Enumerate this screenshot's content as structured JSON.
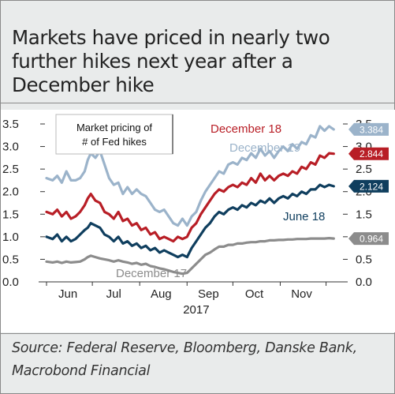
{
  "title": "Markets have priced in nearly two further hikes next year after a December hike",
  "source": "Source: Federal Reserve, Bloomberg, Danske Bank, Macrobond Financial",
  "colors": {
    "dec18": "#b81e26",
    "dec19": "#9bb3ca",
    "jun18": "#0f3e5e",
    "dec17": "#8c8c8c"
  },
  "chart_data": {
    "type": "line",
    "title": "",
    "xlabel": "2017",
    "ylabel": "",
    "ylim": [
      0,
      3.5
    ],
    "yticks": [
      "3.5",
      "3.0",
      "2.5",
      "2.0",
      "1.5",
      "1.0",
      "0.5",
      "0.0"
    ],
    "yticks_right": [
      "3.5",
      "3.0",
      "2.5",
      "2.0",
      "1.5",
      "1.0",
      "0.5",
      "0.0"
    ],
    "ytick_values": [
      3.5,
      3.0,
      2.5,
      2.0,
      1.5,
      1.0,
      0.5,
      0.0
    ],
    "x_tick_labels": [
      "Jun",
      "Jul",
      "Aug",
      "Sep",
      "Oct",
      "Nov"
    ],
    "x_tick_dates": [
      "2017-06-15",
      "2017-07-15",
      "2017-08-15",
      "2017-09-15",
      "2017-10-15",
      "2017-11-15"
    ],
    "x_range": [
      "2017-06-01",
      "2017-12-10"
    ],
    "legend_box": "Market pricing of\n# of Fed hikes",
    "legend_box_lines": [
      "Market pricing of",
      "# of Fed hikes"
    ],
    "grid": false,
    "series": [
      {
        "name": "December 19",
        "key": "dec19",
        "end_label": "3.384",
        "points": [
          [
            "2017-06-01",
            2.3
          ],
          [
            "2017-06-05",
            2.25
          ],
          [
            "2017-06-08",
            2.35
          ],
          [
            "2017-06-11",
            2.2
          ],
          [
            "2017-06-14",
            2.45
          ],
          [
            "2017-06-17",
            2.25
          ],
          [
            "2017-06-20",
            2.25
          ],
          [
            "2017-06-23",
            2.3
          ],
          [
            "2017-06-26",
            2.45
          ],
          [
            "2017-06-28",
            2.7
          ],
          [
            "2017-06-30",
            2.85
          ],
          [
            "2017-07-03",
            2.75
          ],
          [
            "2017-07-06",
            2.9
          ],
          [
            "2017-07-09",
            2.6
          ],
          [
            "2017-07-12",
            2.3
          ],
          [
            "2017-07-15",
            2.15
          ],
          [
            "2017-07-18",
            2.2
          ],
          [
            "2017-07-21",
            1.95
          ],
          [
            "2017-07-24",
            2.1
          ],
          [
            "2017-07-27",
            1.95
          ],
          [
            "2017-07-30",
            2.05
          ],
          [
            "2017-08-02",
            1.95
          ],
          [
            "2017-08-05",
            1.9
          ],
          [
            "2017-08-08",
            1.75
          ],
          [
            "2017-08-11",
            1.6
          ],
          [
            "2017-08-14",
            1.55
          ],
          [
            "2017-08-17",
            1.6
          ],
          [
            "2017-08-20",
            1.45
          ],
          [
            "2017-08-23",
            1.3
          ],
          [
            "2017-08-26",
            1.25
          ],
          [
            "2017-08-29",
            1.4
          ],
          [
            "2017-09-01",
            1.25
          ],
          [
            "2017-09-04",
            1.45
          ],
          [
            "2017-09-07",
            1.55
          ],
          [
            "2017-09-10",
            1.8
          ],
          [
            "2017-09-13",
            2.0
          ],
          [
            "2017-09-16",
            2.15
          ],
          [
            "2017-09-19",
            2.3
          ],
          [
            "2017-09-22",
            2.45
          ],
          [
            "2017-09-25",
            2.4
          ],
          [
            "2017-09-28",
            2.6
          ],
          [
            "2017-10-01",
            2.65
          ],
          [
            "2017-10-04",
            2.6
          ],
          [
            "2017-10-07",
            2.75
          ],
          [
            "2017-10-10",
            2.7
          ],
          [
            "2017-10-13",
            2.85
          ],
          [
            "2017-10-16",
            2.75
          ],
          [
            "2017-10-19",
            2.95
          ],
          [
            "2017-10-22",
            2.8
          ],
          [
            "2017-10-25",
            2.9
          ],
          [
            "2017-10-28",
            2.75
          ],
          [
            "2017-10-31",
            2.9
          ],
          [
            "2017-11-03",
            3.0
          ],
          [
            "2017-11-06",
            2.9
          ],
          [
            "2017-11-09",
            3.05
          ],
          [
            "2017-11-12",
            2.95
          ],
          [
            "2017-11-15",
            3.1
          ],
          [
            "2017-11-18",
            3.05
          ],
          [
            "2017-11-21",
            3.25
          ],
          [
            "2017-11-24",
            3.2
          ],
          [
            "2017-11-27",
            3.45
          ],
          [
            "2017-11-30",
            3.35
          ],
          [
            "2017-12-03",
            3.45
          ],
          [
            "2017-12-06",
            3.38
          ]
        ]
      },
      {
        "name": "December 18",
        "key": "dec18",
        "end_label": "2.844",
        "points": [
          [
            "2017-06-01",
            1.55
          ],
          [
            "2017-06-05",
            1.5
          ],
          [
            "2017-06-08",
            1.6
          ],
          [
            "2017-06-11",
            1.45
          ],
          [
            "2017-06-14",
            1.55
          ],
          [
            "2017-06-17",
            1.4
          ],
          [
            "2017-06-20",
            1.45
          ],
          [
            "2017-06-23",
            1.55
          ],
          [
            "2017-06-26",
            1.7
          ],
          [
            "2017-06-28",
            1.85
          ],
          [
            "2017-06-30",
            1.95
          ],
          [
            "2017-07-03",
            1.8
          ],
          [
            "2017-07-06",
            1.75
          ],
          [
            "2017-07-09",
            1.55
          ],
          [
            "2017-07-12",
            1.5
          ],
          [
            "2017-07-15",
            1.4
          ],
          [
            "2017-07-18",
            1.55
          ],
          [
            "2017-07-21",
            1.35
          ],
          [
            "2017-07-24",
            1.4
          ],
          [
            "2017-07-27",
            1.25
          ],
          [
            "2017-07-30",
            1.3
          ],
          [
            "2017-08-02",
            1.15
          ],
          [
            "2017-08-05",
            1.2
          ],
          [
            "2017-08-08",
            1.05
          ],
          [
            "2017-08-11",
            1.1
          ],
          [
            "2017-08-14",
            0.95
          ],
          [
            "2017-08-17",
            1.0
          ],
          [
            "2017-08-20",
            0.95
          ],
          [
            "2017-08-23",
            0.9
          ],
          [
            "2017-08-26",
            1.0
          ],
          [
            "2017-08-29",
            0.95
          ],
          [
            "2017-09-01",
            1.0
          ],
          [
            "2017-09-04",
            1.2
          ],
          [
            "2017-09-07",
            1.3
          ],
          [
            "2017-09-10",
            1.5
          ],
          [
            "2017-09-13",
            1.65
          ],
          [
            "2017-09-16",
            1.8
          ],
          [
            "2017-09-19",
            1.95
          ],
          [
            "2017-09-22",
            2.05
          ],
          [
            "2017-09-25",
            2.0
          ],
          [
            "2017-09-28",
            2.1
          ],
          [
            "2017-10-01",
            2.15
          ],
          [
            "2017-10-04",
            2.1
          ],
          [
            "2017-10-07",
            2.2
          ],
          [
            "2017-10-10",
            2.15
          ],
          [
            "2017-10-13",
            2.3
          ],
          [
            "2017-10-16",
            2.2
          ],
          [
            "2017-10-19",
            2.4
          ],
          [
            "2017-10-22",
            2.25
          ],
          [
            "2017-10-25",
            2.35
          ],
          [
            "2017-10-28",
            2.25
          ],
          [
            "2017-10-31",
            2.35
          ],
          [
            "2017-11-03",
            2.4
          ],
          [
            "2017-11-06",
            2.35
          ],
          [
            "2017-11-09",
            2.45
          ],
          [
            "2017-11-12",
            2.4
          ],
          [
            "2017-11-15",
            2.55
          ],
          [
            "2017-11-18",
            2.5
          ],
          [
            "2017-11-21",
            2.65
          ],
          [
            "2017-11-24",
            2.6
          ],
          [
            "2017-11-27",
            2.8
          ],
          [
            "2017-11-30",
            2.75
          ],
          [
            "2017-12-03",
            2.85
          ],
          [
            "2017-12-06",
            2.84
          ]
        ]
      },
      {
        "name": "June 18",
        "key": "jun18",
        "end_label": "2.124",
        "points": [
          [
            "2017-06-01",
            1.0
          ],
          [
            "2017-06-05",
            0.95
          ],
          [
            "2017-06-08",
            1.05
          ],
          [
            "2017-06-11",
            0.9
          ],
          [
            "2017-06-14",
            1.0
          ],
          [
            "2017-06-17",
            0.9
          ],
          [
            "2017-06-20",
            0.95
          ],
          [
            "2017-06-23",
            1.05
          ],
          [
            "2017-06-26",
            1.15
          ],
          [
            "2017-06-28",
            1.2
          ],
          [
            "2017-06-30",
            1.3
          ],
          [
            "2017-07-03",
            1.25
          ],
          [
            "2017-07-06",
            1.2
          ],
          [
            "2017-07-09",
            1.05
          ],
          [
            "2017-07-12",
            1.0
          ],
          [
            "2017-07-15",
            0.9
          ],
          [
            "2017-07-18",
            1.0
          ],
          [
            "2017-07-21",
            0.85
          ],
          [
            "2017-07-24",
            0.9
          ],
          [
            "2017-07-27",
            0.8
          ],
          [
            "2017-07-30",
            0.85
          ],
          [
            "2017-08-02",
            0.75
          ],
          [
            "2017-08-05",
            0.8
          ],
          [
            "2017-08-08",
            0.7
          ],
          [
            "2017-08-11",
            0.75
          ],
          [
            "2017-08-14",
            0.65
          ],
          [
            "2017-08-17",
            0.7
          ],
          [
            "2017-08-20",
            0.65
          ],
          [
            "2017-08-23",
            0.6
          ],
          [
            "2017-08-26",
            0.55
          ],
          [
            "2017-08-29",
            0.6
          ],
          [
            "2017-09-01",
            0.55
          ],
          [
            "2017-09-04",
            0.75
          ],
          [
            "2017-09-07",
            0.9
          ],
          [
            "2017-09-10",
            1.05
          ],
          [
            "2017-09-13",
            1.2
          ],
          [
            "2017-09-16",
            1.3
          ],
          [
            "2017-09-19",
            1.45
          ],
          [
            "2017-09-22",
            1.55
          ],
          [
            "2017-09-25",
            1.5
          ],
          [
            "2017-09-28",
            1.6
          ],
          [
            "2017-10-01",
            1.65
          ],
          [
            "2017-10-04",
            1.6
          ],
          [
            "2017-10-07",
            1.7
          ],
          [
            "2017-10-10",
            1.65
          ],
          [
            "2017-10-13",
            1.75
          ],
          [
            "2017-10-16",
            1.7
          ],
          [
            "2017-10-19",
            1.8
          ],
          [
            "2017-10-22",
            1.75
          ],
          [
            "2017-10-25",
            1.85
          ],
          [
            "2017-10-28",
            1.75
          ],
          [
            "2017-10-31",
            1.85
          ],
          [
            "2017-11-03",
            1.9
          ],
          [
            "2017-11-06",
            1.85
          ],
          [
            "2017-11-09",
            1.95
          ],
          [
            "2017-11-12",
            1.9
          ],
          [
            "2017-11-15",
            2.0
          ],
          [
            "2017-11-18",
            1.95
          ],
          [
            "2017-11-21",
            2.05
          ],
          [
            "2017-11-24",
            2.05
          ],
          [
            "2017-11-27",
            2.15
          ],
          [
            "2017-11-30",
            2.1
          ],
          [
            "2017-12-03",
            2.15
          ],
          [
            "2017-12-06",
            2.12
          ]
        ]
      },
      {
        "name": "December 17",
        "key": "dec17",
        "end_label": "0.964",
        "points": [
          [
            "2017-06-01",
            0.45
          ],
          [
            "2017-06-05",
            0.43
          ],
          [
            "2017-06-08",
            0.45
          ],
          [
            "2017-06-11",
            0.42
          ],
          [
            "2017-06-14",
            0.45
          ],
          [
            "2017-06-17",
            0.43
          ],
          [
            "2017-06-20",
            0.44
          ],
          [
            "2017-06-23",
            0.45
          ],
          [
            "2017-06-26",
            0.5
          ],
          [
            "2017-06-28",
            0.55
          ],
          [
            "2017-06-30",
            0.58
          ],
          [
            "2017-07-03",
            0.55
          ],
          [
            "2017-07-06",
            0.52
          ],
          [
            "2017-07-09",
            0.5
          ],
          [
            "2017-07-12",
            0.48
          ],
          [
            "2017-07-15",
            0.45
          ],
          [
            "2017-07-18",
            0.48
          ],
          [
            "2017-07-21",
            0.45
          ],
          [
            "2017-07-24",
            0.43
          ],
          [
            "2017-07-27",
            0.4
          ],
          [
            "2017-07-30",
            0.42
          ],
          [
            "2017-08-02",
            0.38
          ],
          [
            "2017-08-05",
            0.4
          ],
          [
            "2017-08-08",
            0.35
          ],
          [
            "2017-08-11",
            0.33
          ],
          [
            "2017-08-14",
            0.3
          ],
          [
            "2017-08-17",
            0.28
          ],
          [
            "2017-08-20",
            0.25
          ],
          [
            "2017-08-23",
            0.22
          ],
          [
            "2017-08-26",
            0.2
          ],
          [
            "2017-08-29",
            0.18
          ],
          [
            "2017-09-01",
            0.2
          ],
          [
            "2017-09-04",
            0.3
          ],
          [
            "2017-09-07",
            0.4
          ],
          [
            "2017-09-10",
            0.5
          ],
          [
            "2017-09-13",
            0.6
          ],
          [
            "2017-09-16",
            0.65
          ],
          [
            "2017-09-19",
            0.72
          ],
          [
            "2017-09-22",
            0.78
          ],
          [
            "2017-09-25",
            0.78
          ],
          [
            "2017-09-28",
            0.82
          ],
          [
            "2017-10-01",
            0.82
          ],
          [
            "2017-10-04",
            0.85
          ],
          [
            "2017-10-07",
            0.85
          ],
          [
            "2017-10-10",
            0.87
          ],
          [
            "2017-10-13",
            0.88
          ],
          [
            "2017-10-16",
            0.88
          ],
          [
            "2017-10-19",
            0.9
          ],
          [
            "2017-10-22",
            0.9
          ],
          [
            "2017-10-25",
            0.92
          ],
          [
            "2017-10-28",
            0.92
          ],
          [
            "2017-10-31",
            0.93
          ],
          [
            "2017-11-03",
            0.93
          ],
          [
            "2017-11-06",
            0.94
          ],
          [
            "2017-11-09",
            0.94
          ],
          [
            "2017-11-12",
            0.95
          ],
          [
            "2017-11-15",
            0.95
          ],
          [
            "2017-11-18",
            0.95
          ],
          [
            "2017-11-21",
            0.96
          ],
          [
            "2017-11-24",
            0.96
          ],
          [
            "2017-11-27",
            0.96
          ],
          [
            "2017-11-30",
            0.96
          ],
          [
            "2017-12-03",
            0.97
          ],
          [
            "2017-12-06",
            0.96
          ]
        ]
      }
    ]
  }
}
